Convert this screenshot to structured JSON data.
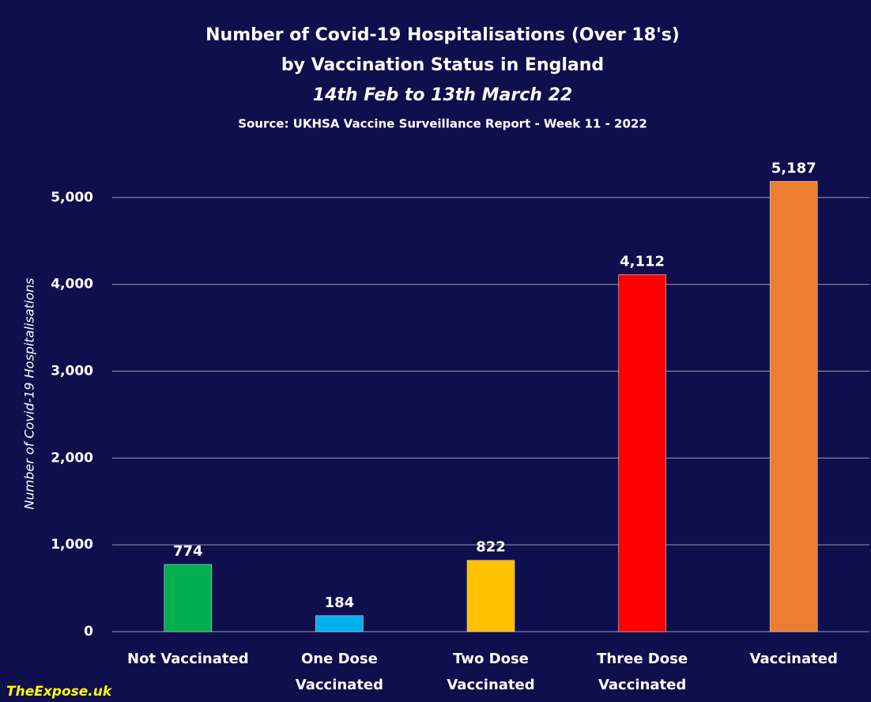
{
  "chart_data": {
    "type": "bar",
    "title": "Number of Covid-19 Hospitalisations (Over 18's)",
    "title_line2": "by Vaccination Status in England",
    "subtitle": "14th Feb to 13th March 22",
    "source": "Source: UKHSA Vaccine Surveillance Report - Week 11 - 2022",
    "y_label": "Number of Covid-19 Hospitalisations",
    "watermark": "TheExpose.uk",
    "categories": [
      [
        "Not Vaccinated"
      ],
      [
        "One Dose",
        "Vaccinated"
      ],
      [
        "Two Dose",
        "Vaccinated"
      ],
      [
        "Three Dose",
        "Vaccinated"
      ],
      [
        "Vaccinated"
      ]
    ],
    "values": [
      774,
      184,
      822,
      4112,
      5187
    ],
    "value_labels": [
      "774",
      "184",
      "822",
      "4,112",
      "5,187"
    ],
    "colors": [
      "#00b050",
      "#00b0f0",
      "#ffc000",
      "#ff0000",
      "#ed7d31"
    ],
    "ylim": [
      0,
      5500
    ],
    "yticks": [
      0,
      {
        "value": 1000,
        "label": "1,000"
      },
      {
        "value": 2000,
        "label": "2,000"
      },
      {
        "value": 3000,
        "label": "3,000"
      },
      {
        "value": 4000,
        "label": "4,000"
      },
      {
        "value": 5000,
        "label": "5,000"
      }
    ],
    "grid": true
  }
}
